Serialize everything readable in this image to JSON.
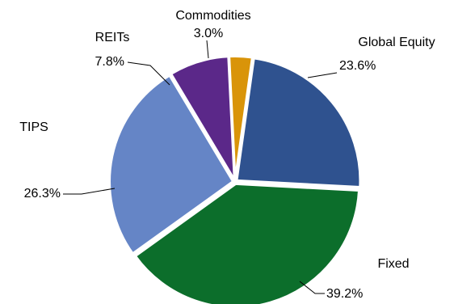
{
  "chart_data": {
    "type": "pie",
    "title": "",
    "slices": [
      {
        "label": "Global Equity",
        "value": 23.6,
        "value_label": "23.6%",
        "color": "#2F528F"
      },
      {
        "label": "Fixed",
        "value": 39.2,
        "value_label": "39.2%",
        "color": "#0C6E2B"
      },
      {
        "label": "TIPS",
        "value": 26.3,
        "value_label": "26.3%",
        "color": "#6585C6"
      },
      {
        "label": "REITs",
        "value": 7.8,
        "value_label": "7.8%",
        "color": "#5B2889"
      },
      {
        "label": "Commodities",
        "value": 3.0,
        "value_label": "3.0%",
        "color": "#D99409"
      }
    ],
    "start_angle_deg": 8,
    "direction": "clockwise",
    "legend": "none"
  }
}
